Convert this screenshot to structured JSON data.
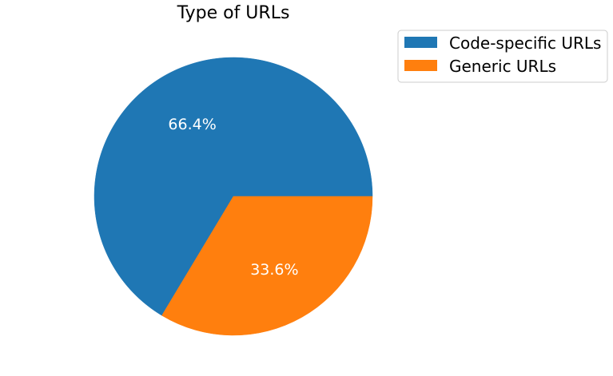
{
  "chart_data": {
    "type": "pie",
    "title": "Type of URLs",
    "categories": [
      "Code-specific URLs",
      "Generic URLs"
    ],
    "values": [
      66.4,
      33.6
    ],
    "labels": [
      "66.4%",
      "33.6%"
    ],
    "colors": [
      "#1f77b4",
      "#ff7f0e"
    ],
    "start_angle_deg": 0,
    "direction": "counterclockwise",
    "legend": "top-right"
  }
}
